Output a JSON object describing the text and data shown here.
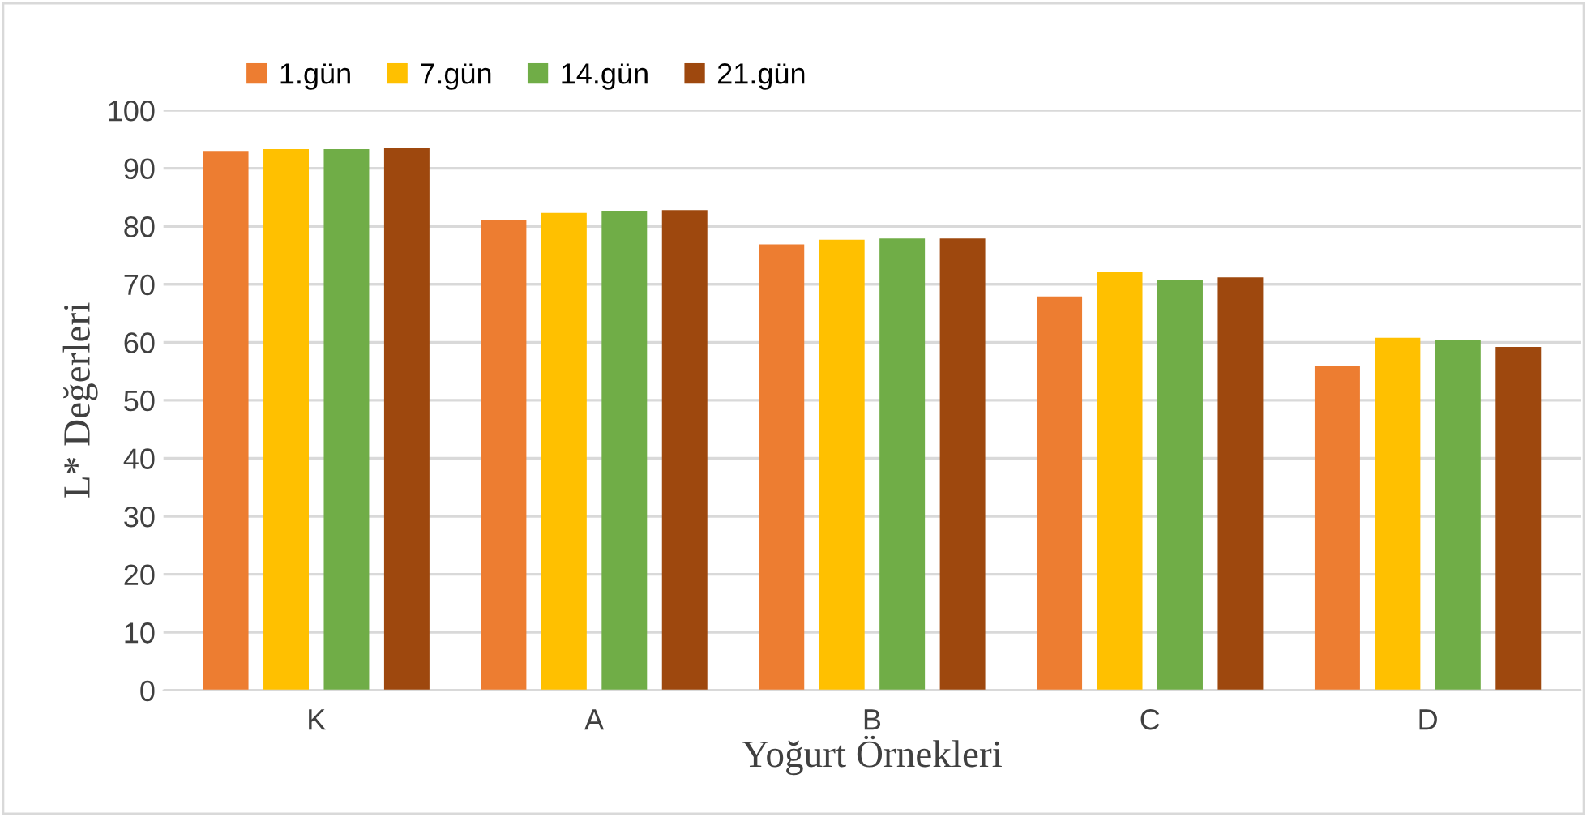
{
  "chart_data": {
    "type": "bar",
    "xlabel": "Yoğurt Örnekleri",
    "ylabel": "L* Değerleri",
    "categories": [
      "K",
      "A",
      "B",
      "C",
      "D"
    ],
    "series": [
      {
        "name": "1.gün",
        "color": "#ed7d31",
        "values": [
          93.0,
          81.0,
          76.9,
          67.9,
          56.0
        ]
      },
      {
        "name": "7.gün",
        "color": "#ffc000",
        "values": [
          93.3,
          82.3,
          77.7,
          72.2,
          60.8
        ]
      },
      {
        "name": "14.gün",
        "color": "#70ad47",
        "values": [
          93.3,
          82.7,
          77.9,
          70.7,
          60.4
        ]
      },
      {
        "name": "21.gün",
        "color": "#9e480e",
        "values": [
          93.6,
          82.8,
          77.9,
          71.2,
          59.2
        ]
      }
    ],
    "ylim": [
      0,
      100
    ],
    "yticks": [
      0,
      10,
      20,
      30,
      40,
      50,
      60,
      70,
      80,
      90,
      100
    ],
    "grid": "y",
    "legend": "top left"
  }
}
